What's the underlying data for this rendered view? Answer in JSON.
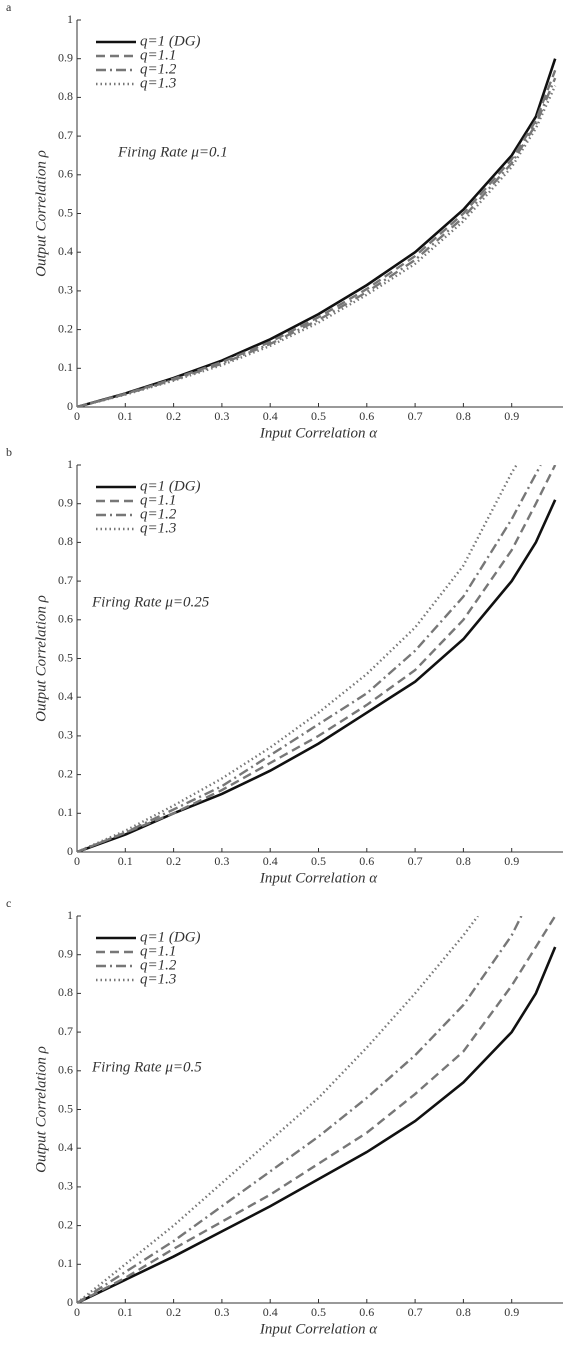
{
  "chart_data": [
    {
      "type": "line",
      "panel_label": "a",
      "x_label": "Input Correlation α",
      "y_label": "Output Correlation ρ",
      "annotation": "Firing Rate μ=0.1",
      "xlim": [
        0,
        1
      ],
      "ylim": [
        0,
        1
      ],
      "xticks": [
        0,
        0.1,
        0.2,
        0.3,
        0.4,
        0.5,
        0.6,
        0.7,
        0.8,
        0.9
      ],
      "yticks": [
        0,
        0.1,
        0.2,
        0.3,
        0.4,
        0.5,
        0.6,
        0.7,
        0.8,
        0.9,
        1
      ],
      "series": [
        {
          "name": "q=1 (DG)",
          "color": "#111111",
          "dash": "none",
          "x": [
            0,
            0.1,
            0.2,
            0.3,
            0.4,
            0.5,
            0.6,
            0.7,
            0.8,
            0.9,
            0.95,
            0.99
          ],
          "values": [
            0,
            0.035,
            0.075,
            0.12,
            0.175,
            0.24,
            0.315,
            0.4,
            0.51,
            0.65,
            0.75,
            0.9
          ]
        },
        {
          "name": "q=1.1",
          "color": "#777777",
          "dash": "9,5",
          "x": [
            0,
            0.1,
            0.2,
            0.3,
            0.4,
            0.5,
            0.6,
            0.7,
            0.8,
            0.9,
            0.95,
            0.99
          ],
          "values": [
            0,
            0.034,
            0.073,
            0.116,
            0.168,
            0.232,
            0.305,
            0.39,
            0.5,
            0.64,
            0.74,
            0.87
          ]
        },
        {
          "name": "q=1.2",
          "color": "#777777",
          "dash": "10,4,2,4",
          "x": [
            0,
            0.1,
            0.2,
            0.3,
            0.4,
            0.5,
            0.6,
            0.7,
            0.8,
            0.9,
            0.95,
            0.99
          ],
          "values": [
            0,
            0.033,
            0.07,
            0.112,
            0.163,
            0.225,
            0.297,
            0.38,
            0.49,
            0.63,
            0.73,
            0.85
          ]
        },
        {
          "name": "q=1.3",
          "color": "#777777",
          "dash": "1.5,3",
          "x": [
            0,
            0.1,
            0.2,
            0.3,
            0.4,
            0.5,
            0.6,
            0.7,
            0.8,
            0.9,
            0.95,
            0.99
          ],
          "values": [
            0,
            0.032,
            0.068,
            0.108,
            0.158,
            0.218,
            0.29,
            0.37,
            0.48,
            0.62,
            0.72,
            0.83
          ]
        }
      ]
    },
    {
      "type": "line",
      "panel_label": "b",
      "x_label": "Input Correlation α",
      "y_label": "Output Correlation ρ",
      "annotation": "Firing Rate  μ=0.25",
      "xlim": [
        0,
        1
      ],
      "ylim": [
        0,
        1
      ],
      "xticks": [
        0,
        0.1,
        0.2,
        0.3,
        0.4,
        0.5,
        0.6,
        0.7,
        0.8,
        0.9
      ],
      "yticks": [
        0,
        0.1,
        0.2,
        0.3,
        0.4,
        0.5,
        0.6,
        0.7,
        0.8,
        0.9,
        1
      ],
      "series": [
        {
          "name": "q=1 (DG)",
          "color": "#111111",
          "dash": "none",
          "x": [
            0,
            0.1,
            0.2,
            0.3,
            0.4,
            0.5,
            0.6,
            0.7,
            0.8,
            0.9,
            0.95,
            0.99
          ],
          "values": [
            0,
            0.045,
            0.1,
            0.15,
            0.21,
            0.28,
            0.36,
            0.44,
            0.55,
            0.7,
            0.8,
            0.91
          ]
        },
        {
          "name": "q=1.1",
          "color": "#777777",
          "dash": "9,5",
          "x": [
            0,
            0.1,
            0.2,
            0.3,
            0.4,
            0.5,
            0.6,
            0.7,
            0.8,
            0.9,
            0.95,
            0.99
          ],
          "values": [
            0,
            0.05,
            0.1,
            0.16,
            0.23,
            0.3,
            0.38,
            0.47,
            0.6,
            0.78,
            0.9,
            1
          ]
        },
        {
          "name": "q=1.2",
          "color": "#777777",
          "dash": "10,4,2,4",
          "x": [
            0,
            0.1,
            0.2,
            0.3,
            0.4,
            0.5,
            0.6,
            0.7,
            0.8,
            0.9,
            0.96
          ],
          "values": [
            0,
            0.05,
            0.11,
            0.17,
            0.25,
            0.33,
            0.41,
            0.52,
            0.66,
            0.86,
            1
          ]
        },
        {
          "name": "q=1.3",
          "color": "#777777",
          "dash": "1.5,3",
          "x": [
            0,
            0.1,
            0.2,
            0.3,
            0.4,
            0.5,
            0.6,
            0.7,
            0.8,
            0.9,
            0.91
          ],
          "values": [
            0,
            0.055,
            0.12,
            0.19,
            0.27,
            0.36,
            0.46,
            0.58,
            0.74,
            0.98,
            1
          ]
        }
      ]
    },
    {
      "type": "line",
      "panel_label": "c",
      "x_label": "Input Correlation α",
      "y_label": "Output Correlation ρ",
      "annotation": "Firing Rate  μ=0.5",
      "xlim": [
        0,
        1
      ],
      "ylim": [
        0,
        1
      ],
      "xticks": [
        0,
        0.1,
        0.2,
        0.3,
        0.4,
        0.5,
        0.6,
        0.7,
        0.8,
        0.9
      ],
      "yticks": [
        0,
        0.1,
        0.2,
        0.3,
        0.4,
        0.5,
        0.6,
        0.7,
        0.8,
        0.9,
        1
      ],
      "series": [
        {
          "name": "q=1 (DG)",
          "color": "#111111",
          "dash": "none",
          "x": [
            0,
            0.1,
            0.2,
            0.3,
            0.4,
            0.5,
            0.6,
            0.7,
            0.8,
            0.9,
            0.95,
            0.99
          ],
          "values": [
            0,
            0.06,
            0.12,
            0.185,
            0.25,
            0.32,
            0.39,
            0.47,
            0.57,
            0.7,
            0.8,
            0.92
          ]
        },
        {
          "name": "q=1.1",
          "color": "#777777",
          "dash": "9,5",
          "x": [
            0,
            0.1,
            0.2,
            0.3,
            0.4,
            0.5,
            0.6,
            0.7,
            0.8,
            0.9,
            0.95,
            0.99
          ],
          "values": [
            0,
            0.065,
            0.14,
            0.21,
            0.28,
            0.36,
            0.44,
            0.54,
            0.65,
            0.82,
            0.92,
            1
          ]
        },
        {
          "name": "q=1.2",
          "color": "#777777",
          "dash": "10,4,2,4",
          "x": [
            0,
            0.1,
            0.2,
            0.3,
            0.4,
            0.5,
            0.6,
            0.7,
            0.8,
            0.9,
            0.92
          ],
          "values": [
            0,
            0.08,
            0.16,
            0.25,
            0.34,
            0.43,
            0.53,
            0.64,
            0.77,
            0.95,
            1
          ]
        },
        {
          "name": "q=1.3",
          "color": "#777777",
          "dash": "1.5,3",
          "x": [
            0,
            0.1,
            0.2,
            0.3,
            0.4,
            0.5,
            0.6,
            0.7,
            0.8,
            0.83
          ],
          "values": [
            0,
            0.1,
            0.2,
            0.31,
            0.42,
            0.53,
            0.66,
            0.8,
            0.95,
            1
          ]
        }
      ]
    }
  ]
}
